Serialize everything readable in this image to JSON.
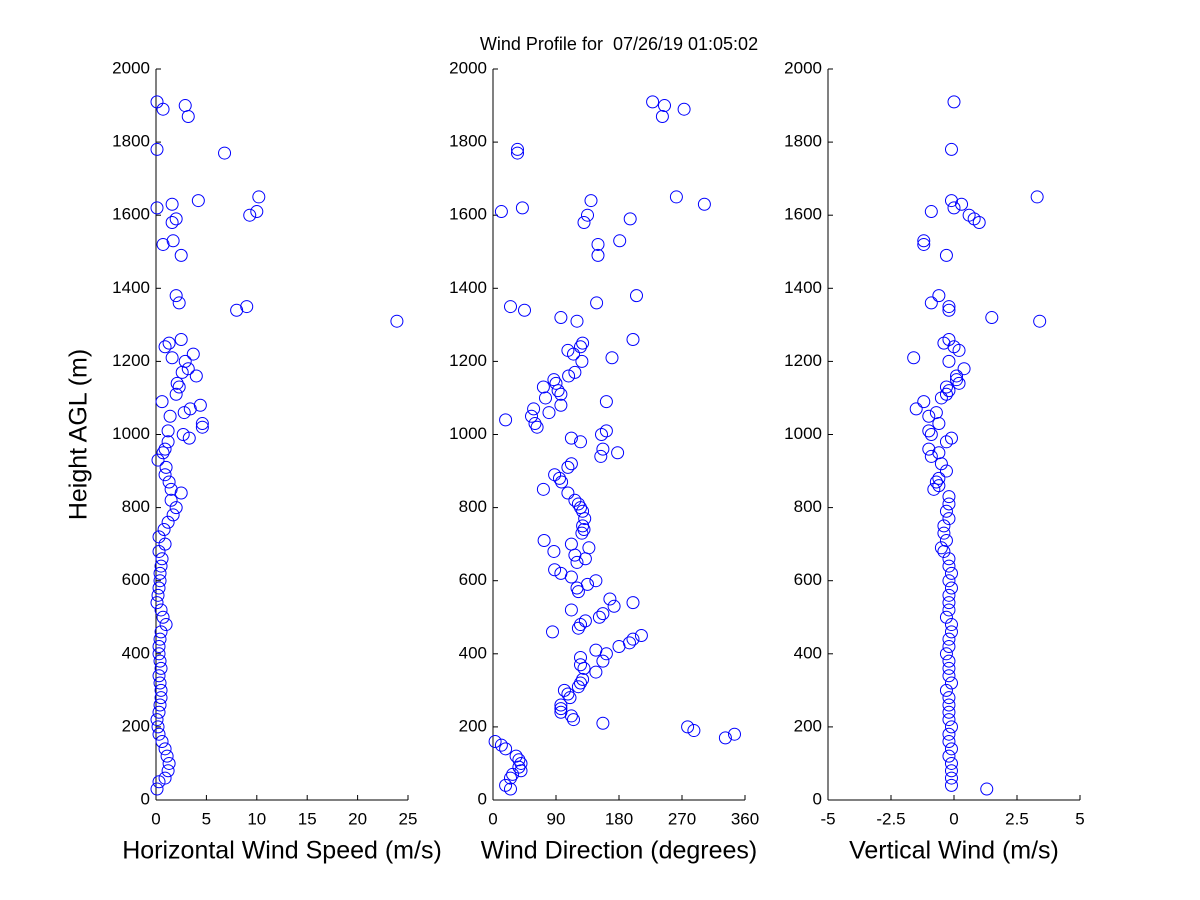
{
  "chart_data": [
    {
      "type": "scatter",
      "xlabel": "Horizontal Wind Speed (m/s)",
      "ylabel": "Height AGL (m)",
      "color": "#0000ff",
      "xlim": [
        0,
        25
      ],
      "ylim": [
        0,
        2000
      ],
      "xticks": [
        0,
        5,
        10,
        15,
        20,
        25
      ],
      "yticks": [
        0,
        200,
        400,
        600,
        800,
        1000,
        1200,
        1400,
        1600,
        1800,
        2000
      ],
      "x": [
        0.1,
        2.9,
        0.7,
        3.2,
        0.1,
        6.8,
        10.2,
        4.2,
        1.6,
        0.1,
        10.0,
        9.3,
        2.0,
        1.6,
        1.7,
        0.7,
        2.5,
        2.0,
        2.3,
        9.0,
        8.0,
        23.9,
        2.5,
        1.3,
        0.9,
        3.7,
        1.6,
        2.9,
        3.2,
        2.6,
        4.0,
        2.1,
        2.3,
        2.0,
        0.6,
        4.4,
        3.4,
        2.8,
        1.4,
        4.6,
        4.6,
        1.2,
        2.7,
        3.3,
        1.2,
        0.9,
        0.7,
        0.2,
        1.0,
        0.9,
        1.3,
        1.5,
        2.5,
        1.5,
        2.0,
        1.7,
        1.2,
        0.8,
        0.3,
        0.9,
        0.3,
        0.6,
        0.5,
        0.4,
        0.4,
        0.3,
        0.2,
        0.1,
        0.5,
        0.7,
        1.0,
        0.5,
        0.4,
        0.3,
        0.3,
        0.4,
        0.5,
        0.3,
        0.4,
        0.5,
        0.5,
        0.4,
        0.3,
        0.1,
        0.2,
        0.3,
        0.6,
        0.9,
        1.1,
        1.3,
        1.2,
        0.9,
        0.3,
        0.1
      ],
      "values": [
        1910,
        1900,
        1890,
        1870,
        1780,
        1770,
        1650,
        1640,
        1630,
        1620,
        1610,
        1600,
        1590,
        1580,
        1530,
        1520,
        1490,
        1380,
        1360,
        1350,
        1340,
        1310,
        1260,
        1250,
        1240,
        1220,
        1210,
        1200,
        1180,
        1170,
        1160,
        1140,
        1130,
        1110,
        1090,
        1080,
        1070,
        1060,
        1050,
        1030,
        1020,
        1010,
        1000,
        990,
        980,
        960,
        950,
        930,
        910,
        890,
        870,
        850,
        840,
        820,
        800,
        780,
        760,
        740,
        720,
        700,
        680,
        660,
        640,
        620,
        600,
        580,
        560,
        540,
        520,
        500,
        480,
        460,
        440,
        420,
        400,
        380,
        360,
        340,
        320,
        300,
        280,
        260,
        240,
        220,
        200,
        180,
        160,
        140,
        120,
        100,
        80,
        60,
        50,
        30
      ]
    },
    {
      "type": "scatter",
      "title": "Wind Profile for  07/26/19 01:05:02",
      "xlabel": "Wind Direction (degrees)",
      "color": "#0000ff",
      "xlim": [
        0,
        360
      ],
      "ylim": [
        0,
        2000
      ],
      "xticks": [
        0,
        90,
        180,
        270,
        360
      ],
      "yticks": [
        0,
        200,
        400,
        600,
        800,
        1000,
        1200,
        1400,
        1600,
        1800,
        2000
      ],
      "x": [
        228,
        245,
        273,
        242,
        35,
        35,
        262,
        140,
        302,
        42,
        12,
        135,
        196,
        130,
        181,
        150,
        150,
        205,
        148,
        25,
        45,
        97,
        120,
        200,
        128,
        125,
        107,
        115,
        170,
        127,
        117,
        108,
        87,
        90,
        72,
        93,
        97,
        75,
        162,
        97,
        58,
        80,
        55,
        18,
        60,
        63,
        162,
        155,
        112,
        125,
        157,
        178,
        154,
        112,
        107,
        88,
        95,
        98,
        72,
        107,
        117,
        122,
        125,
        128,
        131,
        128,
        130,
        127,
        73,
        112,
        137,
        87,
        117,
        132,
        120,
        88,
        97,
        112,
        147,
        135,
        120,
        122,
        167,
        200,
        173,
        112,
        157,
        152,
        132,
        125,
        122,
        85,
        212,
        200,
        195,
        180,
        147,
        162,
        125,
        157,
        125,
        130,
        147,
        128,
        125,
        122,
        102,
        107,
        110,
        97,
        97,
        97,
        112,
        115,
        157,
        278,
        287,
        345,
        332,
        3,
        12,
        18,
        33,
        37,
        40,
        37,
        40,
        28,
        25,
        18,
        25
      ],
      "values": [
        1910,
        1900,
        1890,
        1870,
        1780,
        1770,
        1650,
        1640,
        1630,
        1620,
        1610,
        1600,
        1590,
        1580,
        1530,
        1520,
        1490,
        1380,
        1360,
        1350,
        1340,
        1320,
        1310,
        1260,
        1250,
        1240,
        1230,
        1220,
        1210,
        1200,
        1170,
        1160,
        1150,
        1140,
        1130,
        1120,
        1110,
        1100,
        1090,
        1080,
        1070,
        1060,
        1050,
        1040,
        1030,
        1020,
        1010,
        1000,
        990,
        980,
        960,
        950,
        940,
        920,
        910,
        890,
        880,
        870,
        850,
        840,
        820,
        810,
        800,
        790,
        770,
        750,
        740,
        730,
        710,
        700,
        690,
        680,
        670,
        660,
        650,
        630,
        620,
        610,
        600,
        590,
        580,
        570,
        550,
        540,
        530,
        520,
        510,
        500,
        490,
        480,
        470,
        460,
        450,
        440,
        430,
        420,
        410,
        400,
        390,
        380,
        370,
        360,
        350,
        330,
        320,
        310,
        300,
        290,
        280,
        260,
        250,
        240,
        230,
        220,
        210,
        200,
        190,
        180,
        170,
        160,
        150,
        140,
        120,
        110,
        100,
        90,
        80,
        70,
        60,
        40,
        30
      ]
    },
    {
      "type": "scatter",
      "xlabel": "Vertical Wind (m/s)",
      "color": "#0000ff",
      "xlim": [
        -5,
        5
      ],
      "ylim": [
        0,
        2000
      ],
      "xticks": [
        -5,
        -2.5,
        0,
        2.5,
        5
      ],
      "yticks": [
        0,
        200,
        400,
        600,
        800,
        1000,
        1200,
        1400,
        1600,
        1800,
        2000
      ],
      "x": [
        0.0,
        -0.1,
        3.3,
        -0.1,
        0.3,
        0.0,
        -0.9,
        0.6,
        0.8,
        1.0,
        -1.2,
        -1.2,
        -0.3,
        -0.6,
        -0.9,
        -0.2,
        -0.2,
        1.5,
        3.4,
        -0.2,
        -0.4,
        0.0,
        0.2,
        -1.6,
        -0.2,
        0.4,
        0.1,
        0.1,
        0.2,
        -0.3,
        -0.2,
        -0.3,
        -0.5,
        -1.2,
        -1.5,
        -0.7,
        -1.0,
        -0.6,
        -1.0,
        -0.9,
        -0.1,
        -0.3,
        -1.0,
        -0.6,
        -0.9,
        -0.5,
        -0.3,
        -0.6,
        -0.7,
        -0.6,
        -0.8,
        -0.2,
        -0.2,
        -0.3,
        -0.2,
        -0.4,
        -0.4,
        -0.3,
        -0.5,
        -0.4,
        -0.2,
        -0.2,
        -0.1,
        -0.2,
        -0.1,
        -0.2,
        -0.2,
        -0.2,
        -0.3,
        -0.1,
        -0.1,
        -0.2,
        -0.2,
        -0.3,
        -0.2,
        -0.2,
        -0.2,
        -0.1,
        -0.3,
        -0.2,
        -0.2,
        -0.2,
        -0.2,
        -0.1,
        -0.2,
        -0.2,
        -0.1,
        -0.2,
        -0.1,
        -0.1,
        -0.1,
        -0.1,
        1.3
      ],
      "values": [
        1910,
        1780,
        1650,
        1640,
        1630,
        1620,
        1610,
        1600,
        1590,
        1580,
        1530,
        1520,
        1490,
        1380,
        1360,
        1350,
        1340,
        1320,
        1310,
        1260,
        1250,
        1240,
        1230,
        1210,
        1200,
        1180,
        1160,
        1150,
        1140,
        1130,
        1120,
        1110,
        1100,
        1090,
        1070,
        1060,
        1050,
        1030,
        1010,
        1000,
        990,
        980,
        960,
        950,
        940,
        920,
        900,
        880,
        870,
        860,
        850,
        830,
        810,
        790,
        770,
        750,
        730,
        710,
        690,
        680,
        660,
        640,
        620,
        600,
        580,
        560,
        540,
        520,
        500,
        480,
        460,
        440,
        420,
        400,
        380,
        360,
        340,
        320,
        300,
        280,
        260,
        240,
        220,
        200,
        180,
        160,
        140,
        120,
        100,
        80,
        60,
        40,
        30
      ]
    }
  ]
}
